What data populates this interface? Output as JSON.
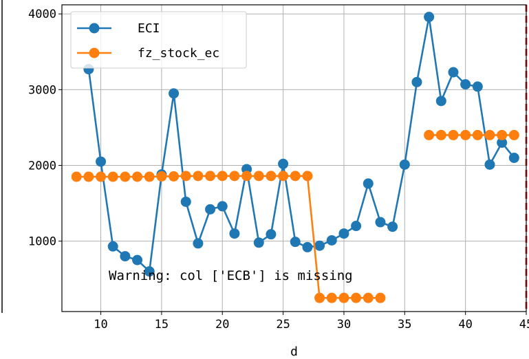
{
  "chart_data": {
    "type": "line",
    "title": "",
    "xlabel": "d",
    "ylabel": "",
    "xlim": [
      6.8,
      45
    ],
    "ylim": [
      70,
      4120
    ],
    "xticks": [
      10,
      15,
      20,
      25,
      30,
      35,
      40,
      45
    ],
    "yticks": [
      1000,
      2000,
      3000,
      4000
    ],
    "xtick_labels": [
      "10",
      "15",
      "20",
      "25",
      "30",
      "35",
      "40",
      "45"
    ],
    "ytick_labels": [
      "1000",
      "2000",
      "3000",
      "4000"
    ],
    "grid": true,
    "legend_position": "top-left",
    "vline": {
      "x": 45,
      "color": "#d62728",
      "style": "dashed"
    },
    "annotation": "Warning: col ['ECB'] is missing",
    "series": [
      {
        "name": "ECI",
        "color": "#1f77b4",
        "points": [
          [
            9,
            3270
          ],
          [
            10,
            2050
          ],
          [
            11,
            930
          ],
          [
            12,
            800
          ],
          [
            13,
            750
          ],
          [
            14,
            600
          ],
          [
            15,
            1880
          ],
          [
            16,
            2950
          ],
          [
            17,
            1520
          ],
          [
            18,
            970
          ],
          [
            19,
            1420
          ],
          [
            20,
            1460
          ],
          [
            21,
            1100
          ],
          [
            22,
            1950
          ],
          [
            23,
            980
          ],
          [
            24,
            1090
          ],
          [
            25,
            2020
          ],
          [
            26,
            990
          ],
          [
            27,
            920
          ],
          [
            28,
            940
          ],
          [
            29,
            1010
          ],
          [
            30,
            1100
          ],
          [
            31,
            1200
          ],
          [
            32,
            1760
          ],
          [
            33,
            1250
          ],
          [
            34,
            1190
          ],
          [
            35,
            2010
          ],
          [
            36,
            3100
          ],
          [
            37,
            3960
          ],
          [
            38,
            2850
          ],
          [
            39,
            3230
          ],
          [
            40,
            3070
          ],
          [
            41,
            3040
          ],
          [
            42,
            2010
          ],
          [
            43,
            2300
          ],
          [
            44,
            2100
          ]
        ]
      },
      {
        "name": "fz_stock_ec",
        "color": "#ff7f0e",
        "points": [
          [
            8,
            1850
          ],
          [
            9,
            1850
          ],
          [
            10,
            1850
          ],
          [
            11,
            1850
          ],
          [
            12,
            1850
          ],
          [
            13,
            1850
          ],
          [
            14,
            1850
          ],
          [
            15,
            1855
          ],
          [
            16,
            1855
          ],
          [
            17,
            1860
          ],
          [
            18,
            1860
          ],
          [
            19,
            1860
          ],
          [
            20,
            1860
          ],
          [
            21,
            1860
          ],
          [
            22,
            1860
          ],
          [
            23,
            1860
          ],
          [
            24,
            1860
          ],
          [
            25,
            1860
          ],
          [
            26,
            1860
          ],
          [
            27,
            1860
          ],
          [
            28,
            250
          ],
          [
            29,
            250
          ],
          [
            30,
            250
          ],
          [
            31,
            250
          ],
          [
            32,
            250
          ],
          [
            33,
            250
          ],
          [
            37,
            2400
          ],
          [
            38,
            2400
          ],
          [
            39,
            2400
          ],
          [
            40,
            2400
          ],
          [
            41,
            2400
          ],
          [
            42,
            2400
          ],
          [
            43,
            2400
          ],
          [
            44,
            2400
          ]
        ]
      }
    ]
  }
}
